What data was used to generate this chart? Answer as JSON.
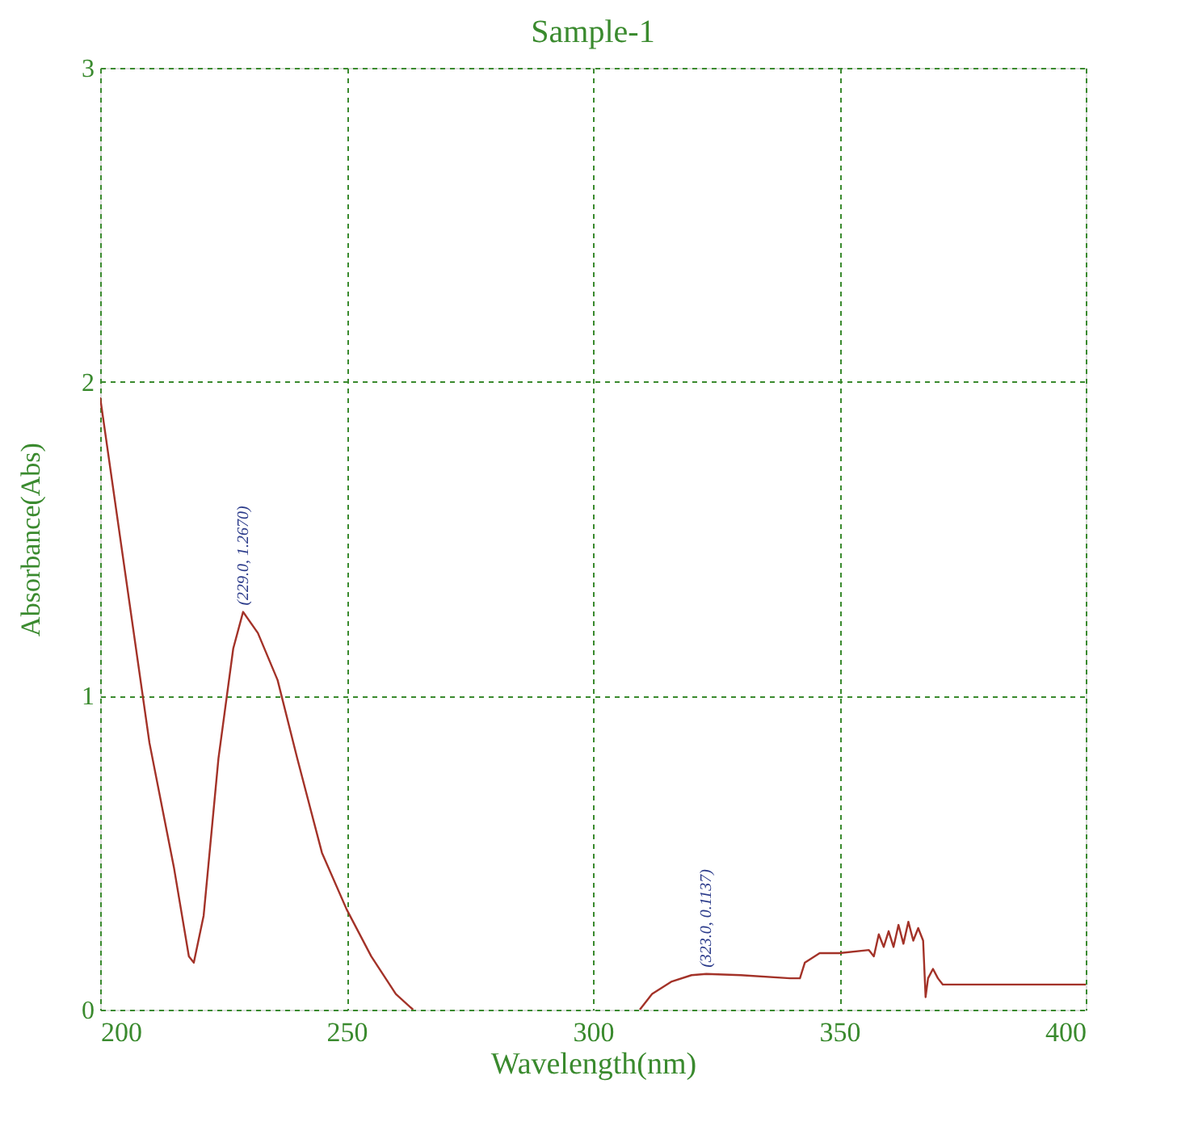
{
  "chart_data": {
    "type": "line",
    "title": "Sample-1",
    "xlabel": "Wavelength(nm)",
    "ylabel": "Absorbance(Abs)",
    "x": [
      200,
      205,
      210,
      215,
      218,
      219,
      221,
      224,
      227,
      229,
      232,
      236,
      240,
      245,
      250,
      255,
      260,
      263.5,
      286,
      309.5,
      312,
      316,
      320,
      323,
      330,
      340,
      342,
      343,
      346,
      350,
      356,
      357,
      358,
      359,
      360,
      361,
      362,
      363,
      364,
      365,
      366,
      367,
      367.5,
      368,
      369,
      370,
      371,
      400
    ],
    "series": [
      {
        "color": "#a33228",
        "values": [
          1.95,
          1.4,
          0.85,
          0.45,
          0.17,
          0.15,
          0.3,
          0.8,
          1.15,
          1.267,
          1.2,
          1.05,
          0.8,
          0.5,
          0.32,
          0.17,
          0.05,
          0,
          null,
          0,
          0.05,
          0.09,
          0.11,
          0.1137,
          0.11,
          0.1,
          0.1,
          0.15,
          0.18,
          0.18,
          0.19,
          0.17,
          0.24,
          0.2,
          0.25,
          0.2,
          0.27,
          0.21,
          0.28,
          0.22,
          0.26,
          0.22,
          0.04,
          0.1,
          0.13,
          0.1,
          0.08,
          0.08
        ]
      }
    ],
    "xlim": [
      200,
      400
    ],
    "xticks": [
      200,
      250,
      300,
      350,
      400
    ],
    "ylim": [
      0,
      3
    ],
    "yticks": [
      0,
      1,
      2,
      3
    ],
    "grid": true,
    "line_style": "solid",
    "marker": "none",
    "annotations": [
      {
        "text": "(229.0, 1.2670)",
        "x": 229,
        "y": 1.267
      },
      {
        "text": "(323.0, 0.1137)",
        "x": 323,
        "y": 0.1137
      }
    ]
  }
}
